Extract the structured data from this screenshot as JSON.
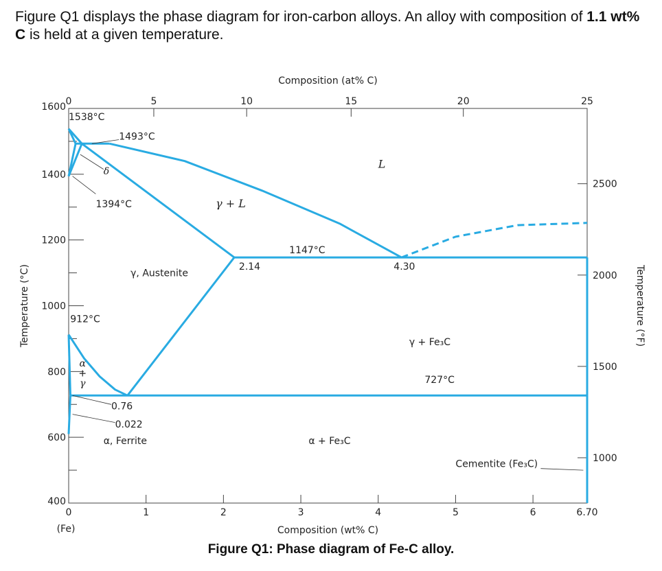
{
  "question": {
    "part1": "Figure Q1 displays the phase diagram for iron-carbon alloys. An alloy with composition of ",
    "bold": "1.1 wt% C",
    "part2": " is held at a given temperature."
  },
  "caption": "Figure Q1: Phase diagram of Fe-C alloy.",
  "chart_data": {
    "type": "phase-diagram",
    "xlabel": "Composition (wt% C)",
    "top_xlabel": "Composition (at% C)",
    "ylabel": "Temperature (°C)",
    "right_ylabel": "Temperature (°F)",
    "xlim": [
      0,
      6.7
    ],
    "ylim": [
      400,
      1600
    ],
    "x_ticks": [
      0,
      1,
      2,
      3,
      4,
      5,
      6
    ],
    "x_tick_labels": [
      "0",
      "1",
      "2",
      "3",
      "4",
      "5",
      "6"
    ],
    "x_end_label": "6.70",
    "x_start_sub": "(Fe)",
    "top_ticks_at": [
      0,
      5,
      10,
      15,
      20,
      25
    ],
    "top_ticks_wt": [
      0,
      1.1,
      2.3,
      3.65,
      5.1,
      6.7
    ],
    "y_ticks": [
      400,
      600,
      800,
      1000,
      1200,
      1400,
      1600
    ],
    "y_minor_ticks": [
      500,
      700,
      900,
      1100,
      1300,
      1500
    ],
    "right_ticks_F": [
      1000,
      1500,
      2000,
      2500
    ],
    "right_ticks_C": [
      537.8,
      815.6,
      1093.3,
      1371.1
    ],
    "colors": {
      "phase_line": "#29abe2",
      "axis": "#444444"
    },
    "lines": [
      {
        "name": "liquidus-left",
        "points": [
          [
            0,
            1538
          ],
          [
            0.09,
            1493
          ]
        ]
      },
      {
        "name": "liquidus-main",
        "points": [
          [
            0.53,
            1493
          ],
          [
            1.5,
            1440
          ],
          [
            2.5,
            1350
          ],
          [
            3.5,
            1250
          ],
          [
            4.3,
            1147
          ]
        ]
      },
      {
        "name": "delta-liquidus",
        "points": [
          [
            0,
            1538
          ],
          [
            0.17,
            1493
          ]
        ]
      },
      {
        "name": "peritectic",
        "points": [
          [
            0.09,
            1493
          ],
          [
            0.53,
            1493
          ]
        ]
      },
      {
        "name": "delta-solvus",
        "points": [
          [
            0,
            1394
          ],
          [
            0.09,
            1493
          ]
        ]
      },
      {
        "name": "delta-gamma",
        "points": [
          [
            0,
            1394
          ],
          [
            0.17,
            1493
          ]
        ]
      },
      {
        "name": "austenite-solidus",
        "points": [
          [
            0.17,
            1493
          ],
          [
            2.14,
            1147
          ]
        ]
      },
      {
        "name": "eutectic",
        "points": [
          [
            2.14,
            1147
          ],
          [
            6.7,
            1147
          ]
        ]
      },
      {
        "name": "acm",
        "points": [
          [
            0.76,
            727
          ],
          [
            2.14,
            1147
          ]
        ]
      },
      {
        "name": "a3",
        "points": [
          [
            0,
            912
          ],
          [
            0.2,
            840
          ],
          [
            0.4,
            785
          ],
          [
            0.6,
            745
          ],
          [
            0.76,
            727
          ]
        ]
      },
      {
        "name": "alpha-gamma",
        "points": [
          [
            0,
            912
          ],
          [
            0.022,
            727
          ]
        ]
      },
      {
        "name": "ferrite-solvus",
        "points": [
          [
            0,
            610
          ],
          [
            0.022,
            727
          ]
        ]
      },
      {
        "name": "eutectoid",
        "points": [
          [
            0.022,
            727
          ],
          [
            6.7,
            727
          ]
        ]
      },
      {
        "name": "cementite-edge",
        "points": [
          [
            6.7,
            400
          ],
          [
            6.7,
            1147
          ]
        ]
      }
    ],
    "dashed_lines": [
      {
        "name": "cementite-liquidus",
        "points": [
          [
            4.3,
            1147
          ],
          [
            5.0,
            1210
          ],
          [
            5.8,
            1245
          ],
          [
            6.7,
            1252
          ]
        ]
      }
    ],
    "labels": [
      {
        "text": "L",
        "x": 4.0,
        "y": 1420,
        "style": "italic"
      },
      {
        "text": "γ + L",
        "x": 1.9,
        "y": 1300,
        "style": "italic"
      },
      {
        "text": "γ, Austenite",
        "x": 0.8,
        "y": 1090,
        "style": "normal"
      },
      {
        "text": "γ + Fe₃C",
        "x": 4.4,
        "y": 880,
        "style": "normal"
      },
      {
        "text": "α + Fe₃C",
        "x": 3.1,
        "y": 580,
        "style": "normal"
      },
      {
        "text": "δ",
        "x": 0.45,
        "y": 1400,
        "style": "italic"
      },
      {
        "text": "α",
        "x": 0.18,
        "y": 815,
        "style": "italic"
      },
      {
        "text": "+",
        "x": 0.18,
        "y": 785,
        "style": "normal"
      },
      {
        "text": "γ",
        "x": 0.18,
        "y": 755,
        "style": "italic"
      },
      {
        "text": "1538°C",
        "x": 0.0,
        "y": 1565,
        "style": "normal"
      },
      {
        "text": "1493°C",
        "x": 0.65,
        "y": 1505,
        "style": "normal"
      },
      {
        "text": "1394°C",
        "x": 0.35,
        "y": 1300,
        "style": "normal"
      },
      {
        "text": "1147°C",
        "x": 2.85,
        "y": 1160,
        "style": "normal"
      },
      {
        "text": "2.14",
        "x": 2.2,
        "y": 1110,
        "style": "normal"
      },
      {
        "text": "4.30",
        "x": 4.2,
        "y": 1110,
        "style": "normal"
      },
      {
        "text": "912°C",
        "x": 0.02,
        "y": 950,
        "style": "normal"
      },
      {
        "text": "727°C",
        "x": 4.6,
        "y": 765,
        "style": "normal"
      },
      {
        "text": "0.76",
        "x": 0.55,
        "y": 685,
        "style": "normal"
      },
      {
        "text": "0.022",
        "x": 0.6,
        "y": 630,
        "style": "normal"
      },
      {
        "text": "α, Ferrite",
        "x": 0.45,
        "y": 580,
        "style": "normal"
      },
      {
        "text": "Cementite (Fe₃C)",
        "x": 5.0,
        "y": 510,
        "style": "normal"
      }
    ]
  }
}
